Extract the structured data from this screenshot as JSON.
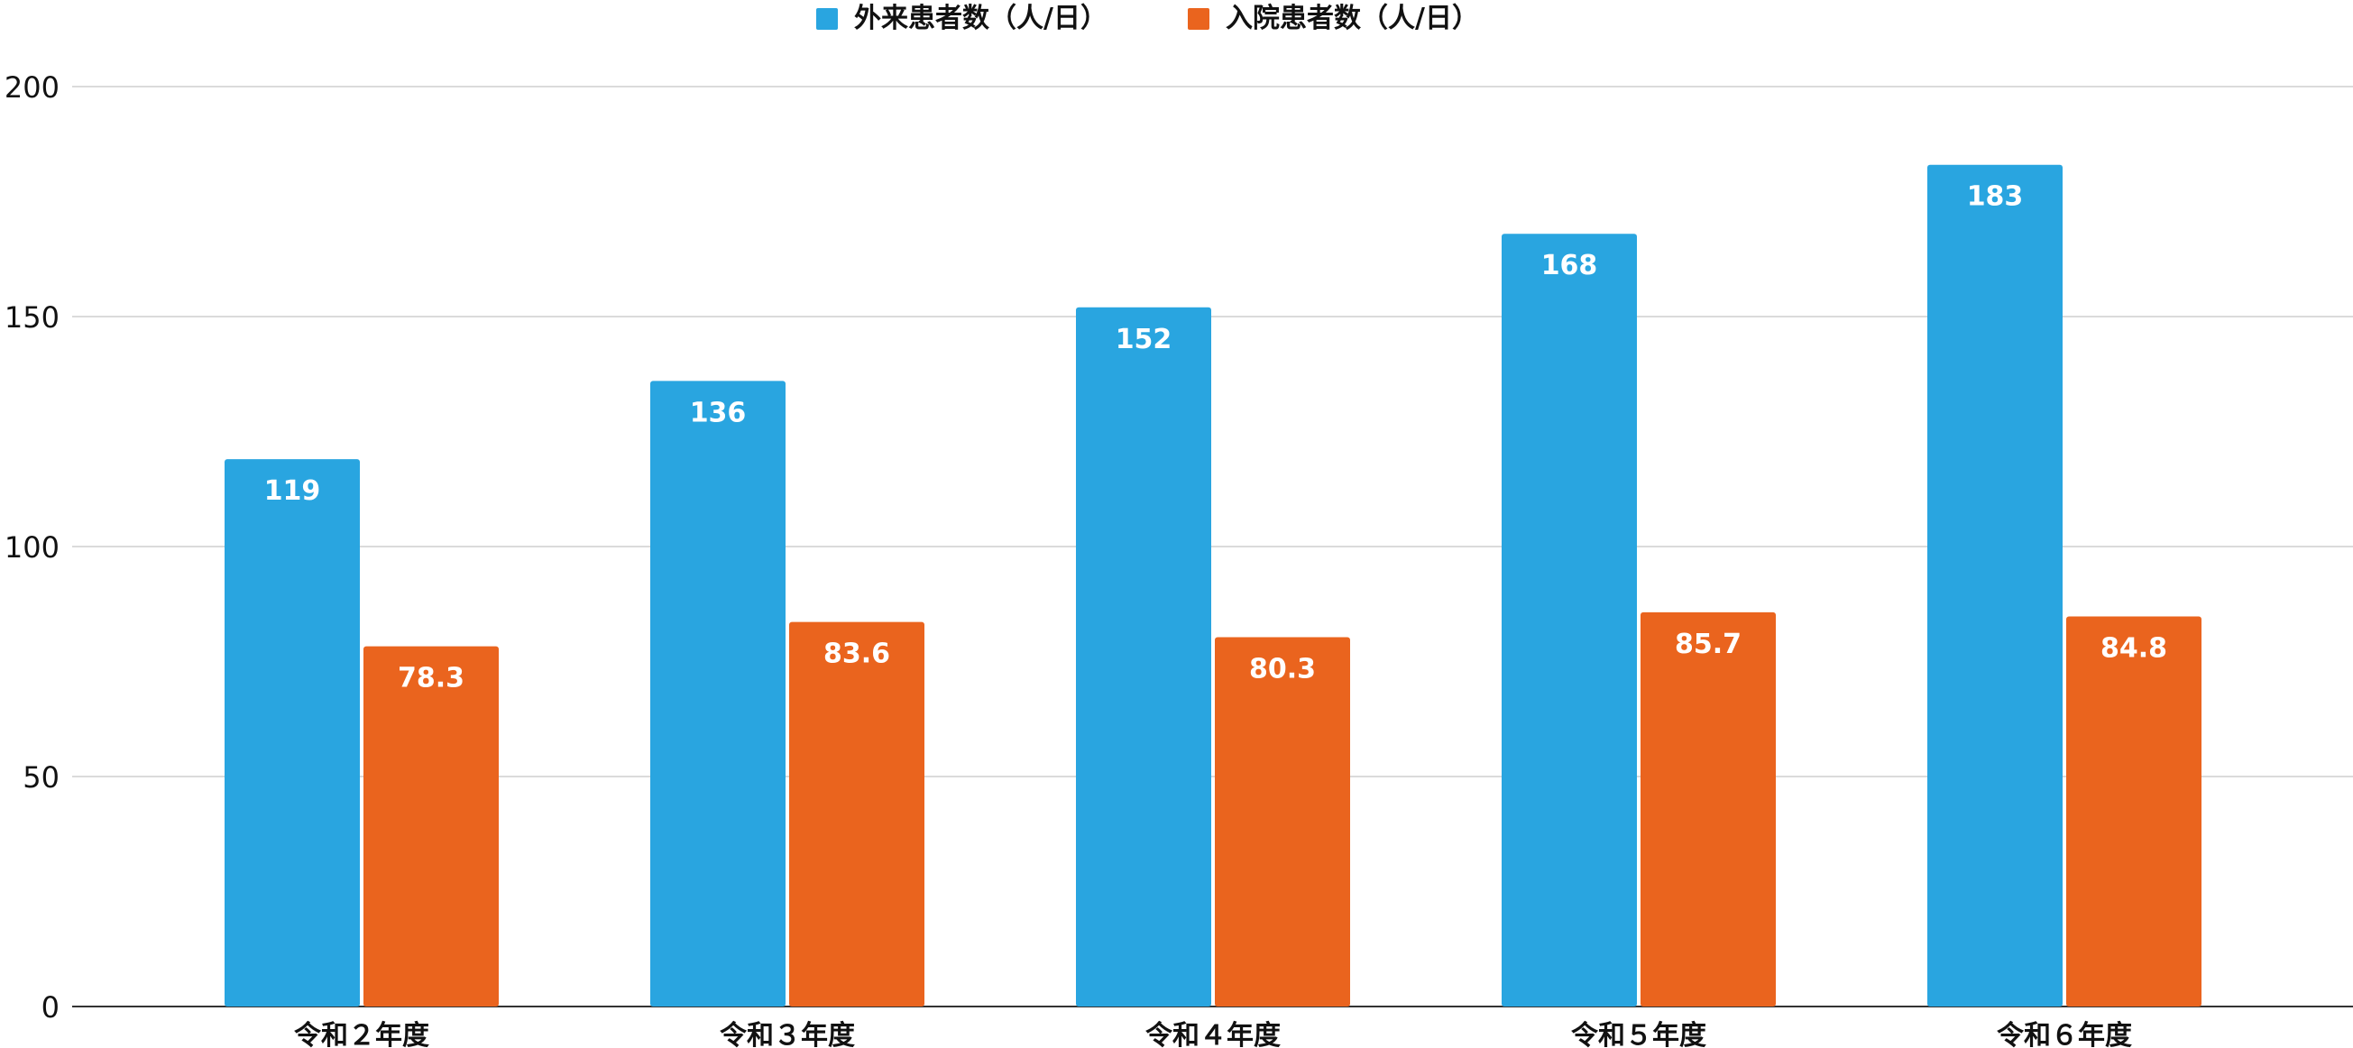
{
  "chart_data": {
    "type": "bar",
    "categories": [
      "令和２年度",
      "令和３年度",
      "令和４年度",
      "令和５年度",
      "令和６年度"
    ],
    "series": [
      {
        "name": "外来患者数（人/日）",
        "values": [
          119,
          136,
          152,
          168,
          183
        ],
        "labels": [
          "119",
          "136",
          "152",
          "168",
          "183"
        ],
        "color": "#29A5E0"
      },
      {
        "name": "入院患者数（人/日）",
        "values": [
          78.3,
          83.6,
          80.3,
          85.7,
          84.8
        ],
        "labels": [
          "78.3",
          "83.6",
          "80.3",
          "85.7",
          "84.8"
        ],
        "color": "#EA641E"
      }
    ],
    "yticks": [
      0,
      50,
      100,
      150,
      200
    ],
    "ylim": [
      0,
      200
    ],
    "grid": true,
    "legend_position": "top-center"
  }
}
